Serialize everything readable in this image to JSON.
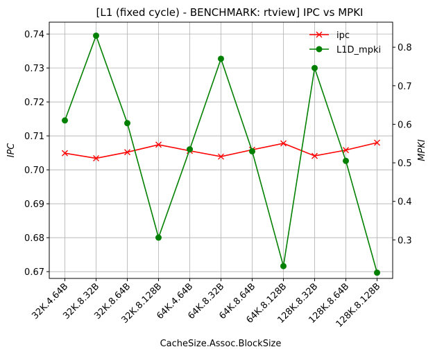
{
  "chart_data": {
    "type": "line",
    "title": "[L1 (fixed cycle) - BENCHMARK: rtview]  IPC vs MPKI",
    "xlabel": "CacheSize.Assoc.BlockSize",
    "ylabel_left": "IPC",
    "ylabel_right": "MPKI",
    "categories": [
      "32K.4.64B",
      "32K.8.32B",
      "32K.8.64B",
      "32K.8.128B",
      "64K.4.64B",
      "64K.8.32B",
      "64K.8.64B",
      "64K.8.128B",
      "128K.8.32B",
      "128K.8.64B",
      "128K.8.128B"
    ],
    "grid": true,
    "legend_position": "top-right",
    "y_left": {
      "lim": [
        0.668,
        0.7435
      ],
      "ticks": [
        0.67,
        0.68,
        0.69,
        0.7,
        0.71,
        0.72,
        0.73,
        0.74
      ],
      "tick_labels": [
        "0.67",
        "0.68",
        "0.69",
        "0.70",
        "0.71",
        "0.72",
        "0.73",
        "0.74"
      ]
    },
    "y_right": {
      "lim": [
        0.2,
        0.865
      ],
      "ticks": [
        0.3,
        0.4,
        0.5,
        0.6,
        0.7,
        0.8
      ],
      "tick_labels": [
        "0.3",
        "0.4",
        "0.5",
        "0.6",
        "0.7",
        "0.8"
      ]
    },
    "series": [
      {
        "name": "ipc",
        "axis": "left",
        "color": "#ff0000",
        "marker": "x",
        "values": [
          0.7049,
          0.7034,
          0.7052,
          0.7074,
          0.7056,
          0.7039,
          0.7059,
          0.7078,
          0.7041,
          0.7058,
          0.708
        ]
      },
      {
        "name": "L1D_mpki",
        "axis": "right",
        "color": "#008000",
        "marker": "o",
        "values": [
          0.61,
          0.83,
          0.603,
          0.306,
          0.535,
          0.77,
          0.53,
          0.232,
          0.746,
          0.505,
          0.215
        ]
      }
    ]
  }
}
